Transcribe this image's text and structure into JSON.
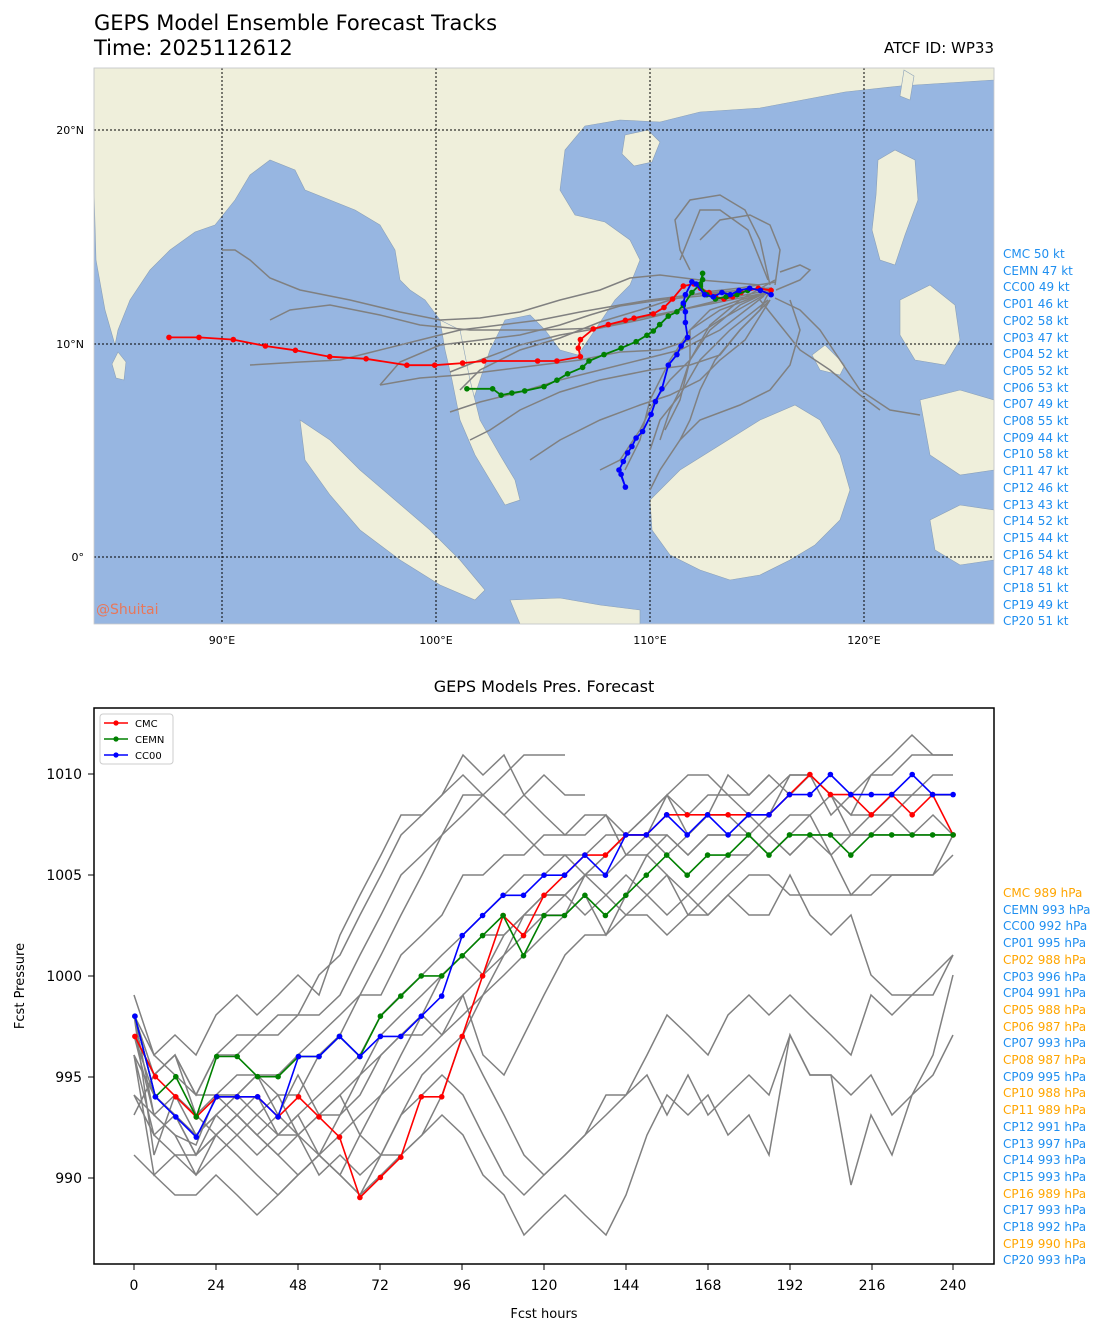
{
  "header": {
    "title": "GEPS Model Ensemble Forecast Tracks",
    "time": "Time: 2025112612",
    "atcf": "ATCF ID: WP33",
    "watermark": "@Shuitai"
  },
  "colors": {
    "ocean": "#97b6e1",
    "land": "#efefdb",
    "CMC": "#ff0000",
    "CEMN": "#008000",
    "CC00": "#0000ff",
    "member": "#808080",
    "label_blue": "#1f8ff0",
    "label_orange": "#ffa500"
  },
  "chart_data": [
    {
      "type": "scatter",
      "title": "GEPS Model Ensemble Forecast Tracks",
      "x_ticks": [
        "90°E",
        "100°E",
        "110°E",
        "120°E"
      ],
      "y_ticks": [
        "20°N",
        "10°N",
        "0°"
      ],
      "xlim": [
        84,
        126
      ],
      "ylim": [
        -3,
        23
      ],
      "grid": true,
      "series": [
        {
          "name": "CMC",
          "points": [
            [
              115.6,
              12.6
            ],
            [
              115.0,
              12.7
            ],
            [
              114.2,
              12.5
            ],
            [
              113.8,
              12.3
            ],
            [
              113.4,
              12.2
            ],
            [
              113.0,
              12.3
            ],
            [
              112.7,
              12.5
            ],
            [
              112.3,
              12.7
            ],
            [
              112.0,
              12.9
            ],
            [
              111.5,
              12.8
            ],
            [
              111.0,
              12.2
            ],
            [
              110.6,
              11.8
            ],
            [
              110.1,
              11.5
            ],
            [
              109.2,
              11.3
            ],
            [
              108.8,
              11.2
            ],
            [
              108.0,
              11.0
            ],
            [
              107.3,
              10.8
            ],
            [
              106.7,
              10.3
            ],
            [
              106.6,
              9.9
            ],
            [
              106.7,
              9.5
            ],
            [
              105.6,
              9.3
            ],
            [
              104.7,
              9.3
            ],
            [
              102.2,
              9.3
            ],
            [
              101.2,
              9.2
            ],
            [
              99.9,
              9.1
            ],
            [
              98.6,
              9.1
            ],
            [
              96.7,
              9.4
            ],
            [
              95.0,
              9.5
            ],
            [
              93.4,
              9.8
            ],
            [
              92.0,
              10.0
            ],
            [
              90.5,
              10.3
            ],
            [
              88.9,
              10.4
            ],
            [
              87.5,
              10.4
            ]
          ]
        },
        {
          "name": "CEMN",
          "points": [
            [
              114.5,
              12.6
            ],
            [
              114.0,
              12.4
            ],
            [
              113.5,
              12.3
            ],
            [
              113.0,
              12.2
            ],
            [
              112.6,
              12.4
            ],
            [
              112.3,
              12.8
            ],
            [
              112.4,
              13.1
            ],
            [
              112.4,
              13.4
            ],
            [
              112.3,
              12.9
            ],
            [
              111.9,
              12.5
            ],
            [
              111.5,
              11.9
            ],
            [
              111.2,
              11.6
            ],
            [
              110.8,
              11.4
            ],
            [
              110.4,
              11.0
            ],
            [
              110.1,
              10.7
            ],
            [
              109.8,
              10.5
            ],
            [
              109.3,
              10.2
            ],
            [
              108.6,
              9.9
            ],
            [
              107.8,
              9.6
            ],
            [
              107.1,
              9.3
            ],
            [
              106.8,
              9.0
            ],
            [
              106.1,
              8.7
            ],
            [
              105.6,
              8.4
            ],
            [
              105.0,
              8.1
            ],
            [
              104.1,
              7.9
            ],
            [
              103.5,
              7.8
            ],
            [
              103.0,
              7.7
            ],
            [
              102.6,
              8.0
            ],
            [
              101.4,
              8.0
            ]
          ]
        },
        {
          "name": "CC00",
          "points": [
            [
              115.6,
              12.4
            ],
            [
              115.1,
              12.6
            ],
            [
              114.6,
              12.7
            ],
            [
              114.1,
              12.6
            ],
            [
              113.7,
              12.4
            ],
            [
              113.3,
              12.5
            ],
            [
              112.9,
              12.3
            ],
            [
              112.5,
              12.4
            ],
            [
              112.1,
              12.9
            ],
            [
              111.9,
              13.0
            ],
            [
              111.6,
              12.4
            ],
            [
              111.5,
              12.0
            ],
            [
              111.6,
              11.6
            ],
            [
              111.6,
              11.1
            ],
            [
              111.7,
              10.4
            ],
            [
              111.4,
              10.0
            ],
            [
              111.2,
              9.6
            ],
            [
              110.8,
              9.1
            ],
            [
              110.5,
              8.0
            ],
            [
              110.2,
              7.4
            ],
            [
              110.0,
              6.8
            ],
            [
              109.6,
              6.0
            ],
            [
              109.3,
              5.7
            ],
            [
              109.1,
              5.3
            ],
            [
              108.9,
              5.0
            ],
            [
              108.7,
              4.6
            ],
            [
              108.5,
              4.2
            ],
            [
              108.8,
              3.4
            ],
            [
              108.6,
              4.0
            ]
          ]
        }
      ],
      "members_note": "",
      "side_labels": [
        {
          "text": "CMC 50 kt"
        },
        {
          "text": "CEMN 47 kt"
        },
        {
          "text": "CC00 49 kt"
        },
        {
          "text": "CP01 46 kt"
        },
        {
          "text": "CP02 58 kt"
        },
        {
          "text": "CP03 47 kt"
        },
        {
          "text": "CP04 52 kt"
        },
        {
          "text": "CP05 52 kt"
        },
        {
          "text": "CP06 53 kt"
        },
        {
          "text": "CP07 49 kt"
        },
        {
          "text": "CP08 55 kt"
        },
        {
          "text": "CP09 44 kt"
        },
        {
          "text": "CP10 58 kt"
        },
        {
          "text": "CP11 47 kt"
        },
        {
          "text": "CP12 46 kt"
        },
        {
          "text": "CP13 43 kt"
        },
        {
          "text": "CP14 52 kt"
        },
        {
          "text": "CP15 44 kt"
        },
        {
          "text": "CP16 54 kt"
        },
        {
          "text": "CP17 48 kt"
        },
        {
          "text": "CP18 51 kt"
        },
        {
          "text": "CP19 49 kt"
        },
        {
          "text": "CP20 51 kt"
        }
      ]
    },
    {
      "type": "line",
      "title": "GEPS Models Pres. Forecast",
      "xlabel": "Fcst hours",
      "ylabel": "Fcst Pressure",
      "x_ticks": [
        "0",
        "24",
        "48",
        "72",
        "96",
        "120",
        "144",
        "168",
        "192",
        "216",
        "240"
      ],
      "y_ticks": [
        "1010",
        "1005",
        "1000",
        "995",
        "990"
      ],
      "xlim": [
        -12,
        252
      ],
      "ylim": [
        985.7,
        1013.3
      ],
      "x": [
        0,
        6,
        12,
        18,
        24,
        30,
        36,
        42,
        48,
        54,
        60,
        66,
        72,
        78,
        84,
        90,
        96,
        102,
        108,
        114,
        120,
        126,
        132,
        138,
        144,
        150,
        156,
        162,
        168,
        174,
        180,
        186,
        192,
        198,
        204,
        210,
        216,
        222,
        228,
        234,
        240
      ],
      "legend": {
        "placement": "top-left",
        "entries": [
          "CMC",
          "CEMN",
          "CC00"
        ]
      },
      "series": [
        {
          "name": "CMC",
          "values": [
            997,
            995,
            994,
            993,
            994,
            994,
            994,
            993,
            994,
            993,
            992,
            989,
            990,
            991,
            994,
            994,
            997,
            1000,
            1003,
            1002,
            1004,
            1005,
            1006,
            1006,
            1007,
            1007,
            1008,
            1008,
            1008,
            1008,
            1008,
            1008,
            1009,
            1010,
            1009,
            1009,
            1008,
            1009,
            1008,
            1009,
            1007
          ]
        },
        {
          "name": "CEMN",
          "values": [
            998,
            994,
            995,
            993,
            996,
            996,
            995,
            995,
            996,
            996,
            997,
            996,
            998,
            999,
            1000,
            1000,
            1001,
            1002,
            1003,
            1001,
            1003,
            1003,
            1004,
            1003,
            1004,
            1005,
            1006,
            1005,
            1006,
            1006,
            1007,
            1006,
            1007,
            1007,
            1007,
            1006,
            1007,
            1007,
            1007,
            1007,
            1007
          ]
        },
        {
          "name": "CC00",
          "values": [
            998,
            994,
            993,
            992,
            994,
            994,
            994,
            993,
            996,
            996,
            997,
            996,
            997,
            997,
            998,
            999,
            1002,
            1003,
            1004,
            1004,
            1005,
            1005,
            1006,
            1005,
            1007,
            1007,
            1008,
            1007,
            1008,
            1007,
            1008,
            1008,
            1009,
            1009,
            1010,
            1009,
            1009,
            1009,
            1010,
            1009,
            1009
          ]
        }
      ],
      "side_labels": [
        {
          "text": "CMC 989 hPa",
          "color": "orange"
        },
        {
          "text": "CEMN 993 hPa",
          "color": "blue"
        },
        {
          "text": "CC00 992 hPa",
          "color": "blue"
        },
        {
          "text": "CP01 995 hPa",
          "color": "blue"
        },
        {
          "text": "CP02 988 hPa",
          "color": "orange"
        },
        {
          "text": "CP03 996 hPa",
          "color": "blue"
        },
        {
          "text": "CP04 991 hPa",
          "color": "blue"
        },
        {
          "text": "CP05 988 hPa",
          "color": "orange"
        },
        {
          "text": "CP06 987 hPa",
          "color": "orange"
        },
        {
          "text": "CP07 993 hPa",
          "color": "blue"
        },
        {
          "text": "CP08 987 hPa",
          "color": "orange"
        },
        {
          "text": "CP09 995 hPa",
          "color": "blue"
        },
        {
          "text": "CP10 988 hPa",
          "color": "orange"
        },
        {
          "text": "CP11 989 hPa",
          "color": "orange"
        },
        {
          "text": "CP12 991 hPa",
          "color": "blue"
        },
        {
          "text": "CP13 997 hPa",
          "color": "blue"
        },
        {
          "text": "CP14 993 hPa",
          "color": "blue"
        },
        {
          "text": "CP15 993 hPa",
          "color": "blue"
        },
        {
          "text": "CP16 989 hPa",
          "color": "orange"
        },
        {
          "text": "CP17 993 hPa",
          "color": "blue"
        },
        {
          "text": "CP18 992 hPa",
          "color": "blue"
        },
        {
          "text": "CP19 990 hPa",
          "color": "orange"
        },
        {
          "text": "CP20 993 hPa",
          "color": "blue"
        }
      ]
    }
  ]
}
